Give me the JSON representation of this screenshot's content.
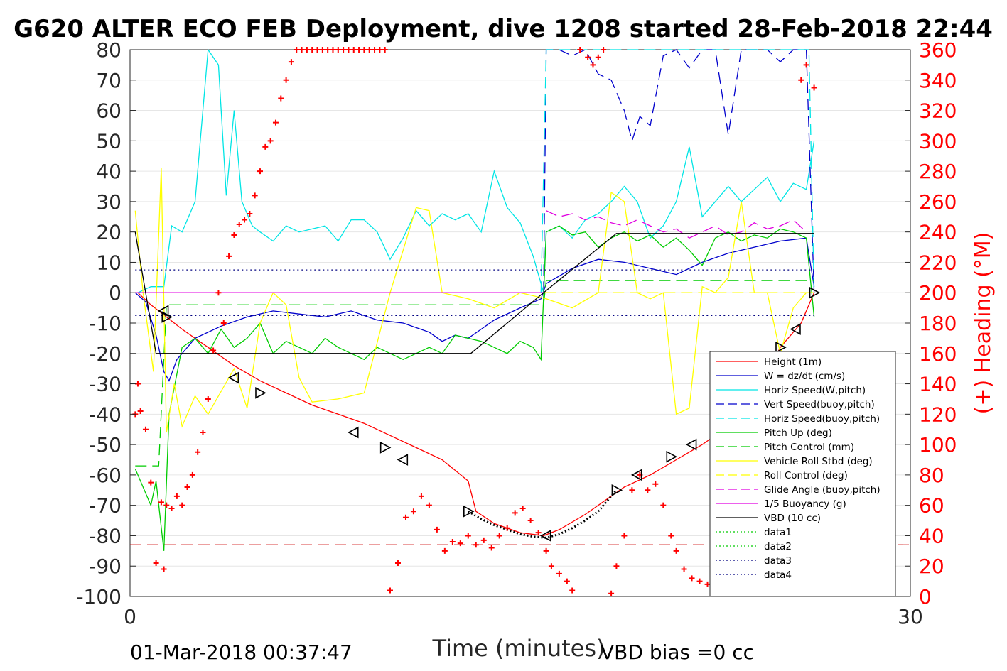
{
  "chart_data": {
    "type": "line",
    "title": "G620 ALTER ECO FEB Deployment, dive 1208 started 28-Feb-2018 22:44",
    "xlabel": "Time (minutes)",
    "ylabel_right": "(+) Heading (°M)",
    "xlim": [
      0,
      30
    ],
    "ylim_left": [
      -100,
      80
    ],
    "ylim_right": [
      0,
      360
    ],
    "x_ticks": [
      0,
      30
    ],
    "y_left_ticks": [
      80,
      70,
      60,
      50,
      40,
      30,
      20,
      10,
      0,
      -10,
      -20,
      -30,
      -40,
      -50,
      -60,
      -70,
      -80,
      -90,
      -100
    ],
    "y_right_ticks": [
      360,
      340,
      320,
      300,
      280,
      260,
      240,
      220,
      200,
      180,
      160,
      140,
      120,
      100,
      80,
      60,
      40,
      20,
      0
    ],
    "grid": true,
    "legend_position": "lower-right",
    "footer_left": "01-Mar-2018 00:37:47",
    "footer_right": "VBD bias =0 cc",
    "colors": {
      "red": "#ff0000",
      "blue": "#0000cc",
      "cyan": "#00e5e5",
      "green": "#00cc00",
      "yellow": "#ffff00",
      "magenta": "#e000e0",
      "black": "#000000"
    },
    "series": [
      {
        "name": "Height (1m)",
        "color": "#ff0000",
        "style": "solid",
        "x": [
          0.3,
          0.8,
          1.4,
          2.0,
          3.0,
          4.0,
          5.0,
          6.0,
          7.0,
          8.0,
          9.0,
          10.0,
          11.0,
          12.0,
          13.0,
          13.3,
          14.0,
          15.0,
          15.9,
          16.5,
          17.5,
          18.5,
          19.0,
          20.0,
          21.0,
          22.0,
          23.0,
          24.0,
          25.0,
          25.8,
          26.3
        ],
        "y": [
          0,
          -4,
          -8,
          -12,
          -18,
          -24,
          -29,
          -33,
          -37,
          -40,
          -43,
          -47,
          -51,
          -55,
          -62,
          -72,
          -76,
          -79,
          -80,
          -78,
          -73,
          -67,
          -64,
          -60,
          -55,
          -50,
          -44,
          -35,
          -18,
          -10,
          0
        ]
      },
      {
        "name": "W = dz/dt (cm/s)",
        "color": "#0000cc",
        "style": "solid",
        "x": [
          0.2,
          0.6,
          1.0,
          1.3,
          1.5,
          1.8,
          2.5,
          3.5,
          4.5,
          5.5,
          6.5,
          7.5,
          8.5,
          9.5,
          10.5,
          11.5,
          12.0,
          12.5,
          13.0,
          13.5,
          14.0,
          15.0,
          15.8,
          16.0,
          17.0,
          18.0,
          19.0,
          20.0,
          21.0,
          22.0,
          23.0,
          24.0,
          25.0,
          26.0,
          26.3
        ],
        "y": [
          0,
          -3,
          -14,
          -26,
          -29,
          -22,
          -15,
          -11,
          -8,
          -6,
          -7,
          -8,
          -6,
          -9,
          -10,
          -13,
          -16,
          -14,
          -15,
          -12,
          -9,
          -5,
          -2,
          3,
          8,
          11,
          10,
          8,
          6,
          10,
          13,
          15,
          17,
          18,
          2
        ]
      },
      {
        "name": "Horiz Speed(W,pitch)",
        "color": "#00e5e5",
        "style": "solid",
        "x": [
          0.3,
          0.8,
          1.3,
          1.6,
          2.0,
          2.5,
          3.0,
          3.4,
          3.7,
          4.0,
          4.3,
          4.7,
          5.0,
          5.5,
          6.0,
          6.5,
          7.0,
          7.5,
          8.0,
          8.5,
          9.0,
          9.5,
          10.0,
          10.5,
          11.0,
          11.5,
          12.0,
          12.5,
          13.0,
          13.5,
          14.0,
          14.5,
          15.0,
          15.5,
          15.9,
          16.0,
          16.5,
          17.0,
          17.5,
          18.0,
          18.5,
          19.0,
          19.5,
          20.0,
          20.5,
          21.0,
          21.5,
          22.0,
          22.5,
          23.0,
          23.5,
          24.0,
          24.5,
          25.0,
          25.5,
          26.0,
          26.3
        ],
        "y": [
          0,
          2,
          2,
          22,
          20,
          30,
          80,
          75,
          32,
          60,
          30,
          22,
          20,
          17,
          22,
          20,
          21,
          22,
          17,
          24,
          24,
          20,
          11,
          18,
          27,
          22,
          26,
          24,
          26,
          20,
          40,
          28,
          23,
          12,
          0,
          20,
          22,
          18,
          24,
          26,
          30,
          35,
          30,
          18,
          22,
          30,
          48,
          25,
          30,
          35,
          30,
          34,
          38,
          30,
          36,
          34,
          50
        ]
      },
      {
        "name": "Vert Speed(buoy,pitch)",
        "color": "#0000cc",
        "style": "dashed",
        "x": [
          15.9,
          16.0,
          16.5,
          17.0,
          17.5,
          18.0,
          18.5,
          19.0,
          19.3,
          19.6,
          20.0,
          20.5,
          21.0,
          21.5,
          22.0,
          22.5,
          23.0,
          23.5,
          24.0,
          24.5,
          25.0,
          25.5,
          26.0,
          26.3
        ],
        "y": [
          0,
          80,
          80,
          78,
          80,
          72,
          70,
          60,
          50,
          58,
          55,
          78,
          80,
          74,
          80,
          80,
          52,
          80,
          80,
          80,
          76,
          80,
          80,
          0
        ]
      },
      {
        "name": "Horiz Speed(buoy,pitch)",
        "color": "#00e5e5",
        "style": "dashed",
        "x": [
          15.8,
          16.0,
          16.2,
          26.1,
          26.3
        ],
        "y": [
          0,
          80,
          80,
          80,
          0
        ]
      },
      {
        "name": "Pitch Up (deg)",
        "color": "#00cc00",
        "style": "solid",
        "x": [
          0.2,
          0.8,
          1.0,
          1.3,
          1.5,
          2.0,
          2.5,
          3.0,
          3.5,
          4.0,
          4.5,
          5.0,
          5.5,
          6.0,
          6.5,
          7.0,
          7.5,
          8.0,
          8.5,
          9.0,
          9.5,
          10.0,
          10.5,
          11.0,
          11.5,
          12.0,
          12.5,
          13.0,
          13.5,
          14.0,
          14.5,
          15.0,
          15.5,
          15.8,
          16.0,
          16.5,
          17.0,
          17.5,
          18.0,
          18.5,
          19.0,
          19.5,
          20.0,
          20.5,
          21.0,
          21.5,
          22.0,
          22.5,
          23.0,
          23.5,
          24.0,
          24.5,
          25.0,
          25.5,
          26.0,
          26.3
        ],
        "y": [
          -58,
          -70,
          -62,
          -85,
          -40,
          -18,
          -15,
          -20,
          -12,
          -18,
          -15,
          -10,
          -20,
          -16,
          -18,
          -20,
          -15,
          -18,
          -20,
          -22,
          -18,
          -20,
          -22,
          -20,
          -18,
          -20,
          -14,
          -15,
          -16,
          -18,
          -20,
          -16,
          -18,
          -22,
          20,
          22,
          19,
          20,
          15,
          18,
          20,
          17,
          19,
          15,
          18,
          14,
          9,
          18,
          20,
          17,
          19,
          18,
          21,
          20,
          18,
          -8
        ]
      },
      {
        "name": "Pitch Control (mm)",
        "color": "#00cc00",
        "style": "dashed",
        "x": [
          0.2,
          1.1,
          1.4,
          15.9,
          16.0,
          26.3
        ],
        "y": [
          -57,
          -57,
          -4,
          -4,
          4,
          4
        ]
      },
      {
        "name": "Vehicle Roll Stbd (deg)",
        "color": "#ffff00",
        "style": "solid",
        "x": [
          0.2,
          0.5,
          0.9,
          1.2,
          1.4,
          1.7,
          2.0,
          2.5,
          3.0,
          4.0,
          4.5,
          5.0,
          5.5,
          6.0,
          6.5,
          7.0,
          8.0,
          9.0,
          10.0,
          11.0,
          11.5,
          12.0,
          13.0,
          14.0,
          15.0,
          16.0,
          17.0,
          18.0,
          18.5,
          19.0,
          19.5,
          20.0,
          20.5,
          21.0,
          21.5,
          22.0,
          22.5,
          23.0,
          23.5,
          24.0,
          24.5,
          25.0,
          25.5,
          26.0,
          26.3
        ],
        "y": [
          27,
          0,
          -26,
          41,
          -46,
          -30,
          -44,
          -34,
          -40,
          -25,
          -38,
          -10,
          0,
          -4,
          -28,
          -36,
          -35,
          -33,
          0,
          28,
          27,
          0,
          -2,
          -5,
          0,
          -2,
          -5,
          0,
          33,
          30,
          0,
          -2,
          0,
          -40,
          -38,
          2,
          0,
          5,
          30,
          0,
          0,
          -20,
          -5,
          0,
          0
        ]
      },
      {
        "name": "Roll Control (deg)",
        "color": "#ffff00",
        "style": "dashed",
        "x": [
          0.2,
          26.3
        ],
        "y": [
          0,
          0
        ]
      },
      {
        "name": "Glide Angle (buoy,pitch)",
        "color": "#e000e0",
        "style": "dashed",
        "x": [
          16.0,
          16.5,
          17.0,
          17.5,
          18.0,
          18.5,
          19.0,
          19.5,
          20.0,
          20.5,
          21.0,
          21.5,
          22.0,
          22.5,
          23.0,
          23.5,
          24.0,
          24.5,
          25.0,
          25.5,
          26.0
        ],
        "y": [
          27,
          25,
          26,
          24,
          25,
          23,
          22,
          24,
          22,
          20,
          21,
          18,
          20,
          22,
          19,
          20,
          23,
          21,
          22,
          24,
          20
        ]
      },
      {
        "name": "1/5 Buoyancy (g)",
        "color": "#e000e0",
        "style": "solid",
        "x": [
          0.2,
          15.9
        ],
        "y": [
          0,
          0
        ]
      },
      {
        "name": "VBD (10 cc)",
        "color": "#000000",
        "style": "solid",
        "x": [
          0.2,
          1.0,
          13.1,
          15.9,
          18.7,
          26.3
        ],
        "y": [
          20,
          -20,
          -20,
          0,
          19.5,
          19.5
        ]
      },
      {
        "name": "data1",
        "color": "#00cc00",
        "style": "dotted",
        "x": [],
        "y": []
      },
      {
        "name": "data2",
        "color": "#00cc00",
        "style": "dotted",
        "x": [],
        "y": []
      },
      {
        "name": "data3",
        "color": "#000080",
        "style": "dotted",
        "x": [
          0.2,
          26.3
        ],
        "y": [
          7.5,
          7.5
        ]
      },
      {
        "name": "data4",
        "color": "#000080",
        "style": "dotted",
        "x": [
          0.2,
          26.3
        ],
        "y": [
          -7.5,
          -7.5
        ]
      }
    ],
    "heading_reference": {
      "color": "#cc0000",
      "style": "dashed",
      "y_right": 34
    },
    "heading_markers": {
      "axis": "right",
      "marker": "+",
      "color": "#ff0000",
      "x": [
        0.2,
        0.3,
        0.4,
        0.6,
        0.8,
        1.0,
        1.2,
        1.3,
        1.4,
        1.6,
        1.8,
        2.0,
        2.2,
        2.4,
        2.6,
        2.8,
        3.0,
        3.2,
        3.4,
        3.6,
        3.8,
        4.0,
        4.2,
        4.4,
        4.6,
        4.8,
        5.0,
        5.2,
        5.4,
        5.6,
        5.8,
        6.0,
        6.2,
        6.4,
        6.6,
        6.8,
        7.0,
        7.2,
        7.4,
        7.6,
        7.8,
        8.0,
        8.2,
        8.4,
        8.6,
        8.8,
        9.0,
        9.2,
        9.4,
        9.6,
        9.8,
        10.0,
        10.3,
        10.6,
        10.9,
        11.2,
        11.5,
        11.8,
        12.1,
        12.4,
        12.7,
        13.0,
        13.3,
        13.6,
        13.9,
        14.2,
        14.5,
        14.8,
        15.1,
        15.4,
        15.7,
        16.0,
        16.2,
        16.5,
        16.8,
        17.0,
        17.3,
        17.6,
        17.8,
        18.0,
        18.2,
        18.5,
        18.7,
        19.0,
        19.3,
        19.6,
        19.9,
        20.2,
        20.5,
        20.8,
        21.0,
        21.3,
        21.6,
        21.9,
        22.2,
        22.5,
        22.8,
        23.1,
        23.4,
        23.7,
        24.0,
        24.3,
        24.6,
        24.9,
        25.2,
        25.5,
        25.8,
        26.0,
        26.3
      ],
      "y": [
        120,
        140,
        122,
        110,
        75,
        22,
        62,
        18,
        60,
        58,
        66,
        60,
        72,
        80,
        95,
        108,
        130,
        162,
        200,
        180,
        224,
        238,
        245,
        248,
        252,
        264,
        280,
        296,
        300,
        312,
        328,
        340,
        352,
        360,
        360,
        360,
        360,
        360,
        360,
        360,
        360,
        360,
        360,
        360,
        360,
        360,
        360,
        360,
        360,
        360,
        360,
        4,
        22,
        52,
        56,
        66,
        60,
        44,
        30,
        36,
        35,
        40,
        34,
        37,
        32,
        40,
        45,
        55,
        58,
        50,
        42,
        30,
        20,
        15,
        10,
        4,
        360,
        355,
        350,
        355,
        360,
        2,
        20,
        40,
        70,
        80,
        70,
        74,
        60,
        40,
        30,
        18,
        12,
        10,
        8,
        6,
        10,
        12,
        14,
        10,
        18,
        22,
        18,
        12,
        6,
        4,
        340,
        350,
        335
      ]
    },
    "annotation_markers": {
      "marker": "triangle",
      "color": "#000000",
      "x": [
        1.3,
        1.4,
        4.0,
        5.0,
        8.6,
        9.8,
        10.5,
        13.0,
        16.0,
        18.7,
        19.5,
        20.8,
        21.6,
        25.0,
        25.6,
        26.3
      ],
      "y": [
        -6,
        -8,
        -28,
        -33,
        -46,
        -51,
        -55,
        -72,
        -80,
        -65,
        -60,
        -54,
        -50,
        -18,
        -12,
        0
      ]
    },
    "dotted_segment": {
      "color": "#000000",
      "x": [
        13.0,
        13.5,
        14.0,
        14.5,
        15.0,
        15.5,
        16.0,
        16.5,
        17.0,
        17.5,
        18.0,
        18.5,
        18.7
      ],
      "y": [
        -72,
        -74.5,
        -76.5,
        -78,
        -79.5,
        -80.3,
        -80.7,
        -79.5,
        -77.5,
        -75,
        -72,
        -67,
        -65
      ]
    }
  }
}
